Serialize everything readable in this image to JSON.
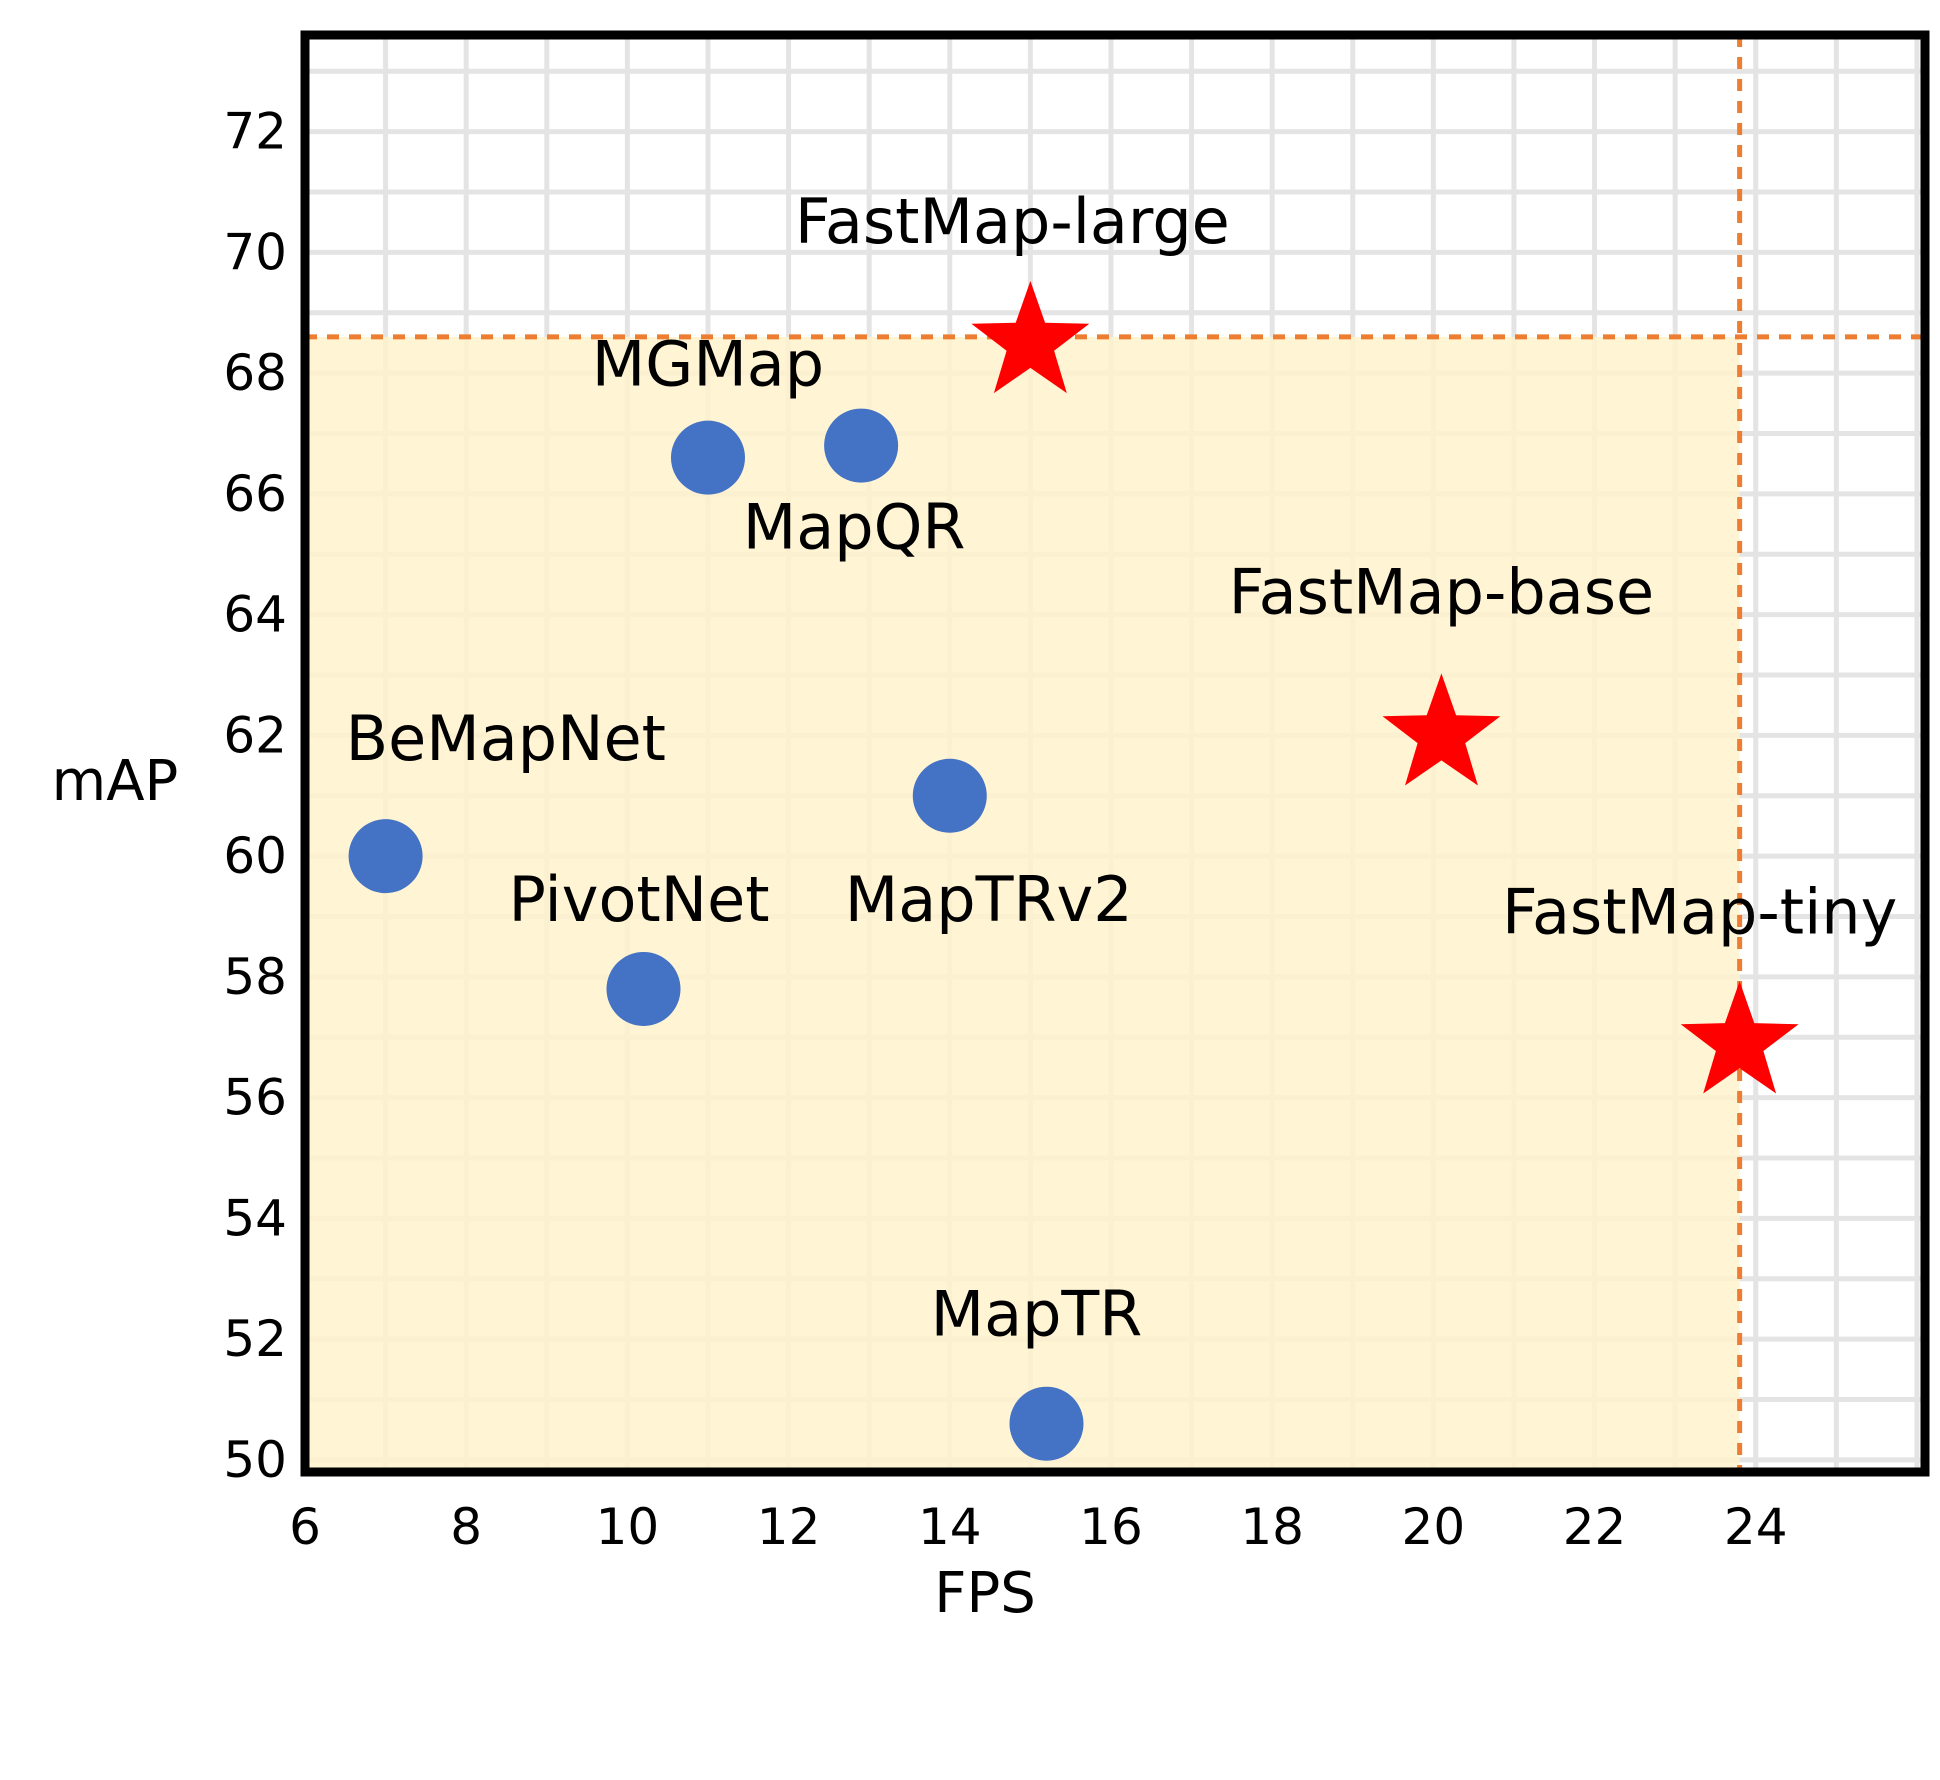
{
  "chart_data": {
    "type": "scatter",
    "xlabel": "FPS",
    "ylabel": "mAP",
    "xlim": [
      6,
      26.1
    ],
    "ylim": [
      49.8,
      73.6
    ],
    "xticks": [
      6,
      8,
      10,
      12,
      14,
      16,
      18,
      20,
      22,
      24
    ],
    "yticks": [
      50,
      52,
      54,
      56,
      58,
      60,
      62,
      64,
      66,
      68,
      70,
      72
    ],
    "grid": true,
    "region": {
      "x_max": 23.8,
      "y_max": 68.6,
      "fill_color": "#fff2cc",
      "line_color": "#ed7d31"
    },
    "series": [
      {
        "marker": "circle",
        "color": "#4472c4",
        "points": [
          {
            "label": "BeMapNet",
            "x": 7.0,
            "y": 60.0
          },
          {
            "label": "PivotNet",
            "x": 10.2,
            "y": 57.8
          },
          {
            "label": "MGMap",
            "x": 11.0,
            "y": 66.6
          },
          {
            "label": "MapQR",
            "x": 12.9,
            "y": 66.8
          },
          {
            "label": "MapTRv2",
            "x": 14.0,
            "y": 61.0
          },
          {
            "label": "MapTR",
            "x": 15.2,
            "y": 50.6
          }
        ]
      },
      {
        "marker": "star",
        "color": "#ff0000",
        "points": [
          {
            "label": "FastMap-large",
            "x": 15.0,
            "y": 68.5
          },
          {
            "label": "FastMap-base",
            "x": 20.1,
            "y": 62.0
          },
          {
            "label": "FastMap-tiny",
            "x": 23.8,
            "y": 56.9
          }
        ]
      }
    ]
  }
}
